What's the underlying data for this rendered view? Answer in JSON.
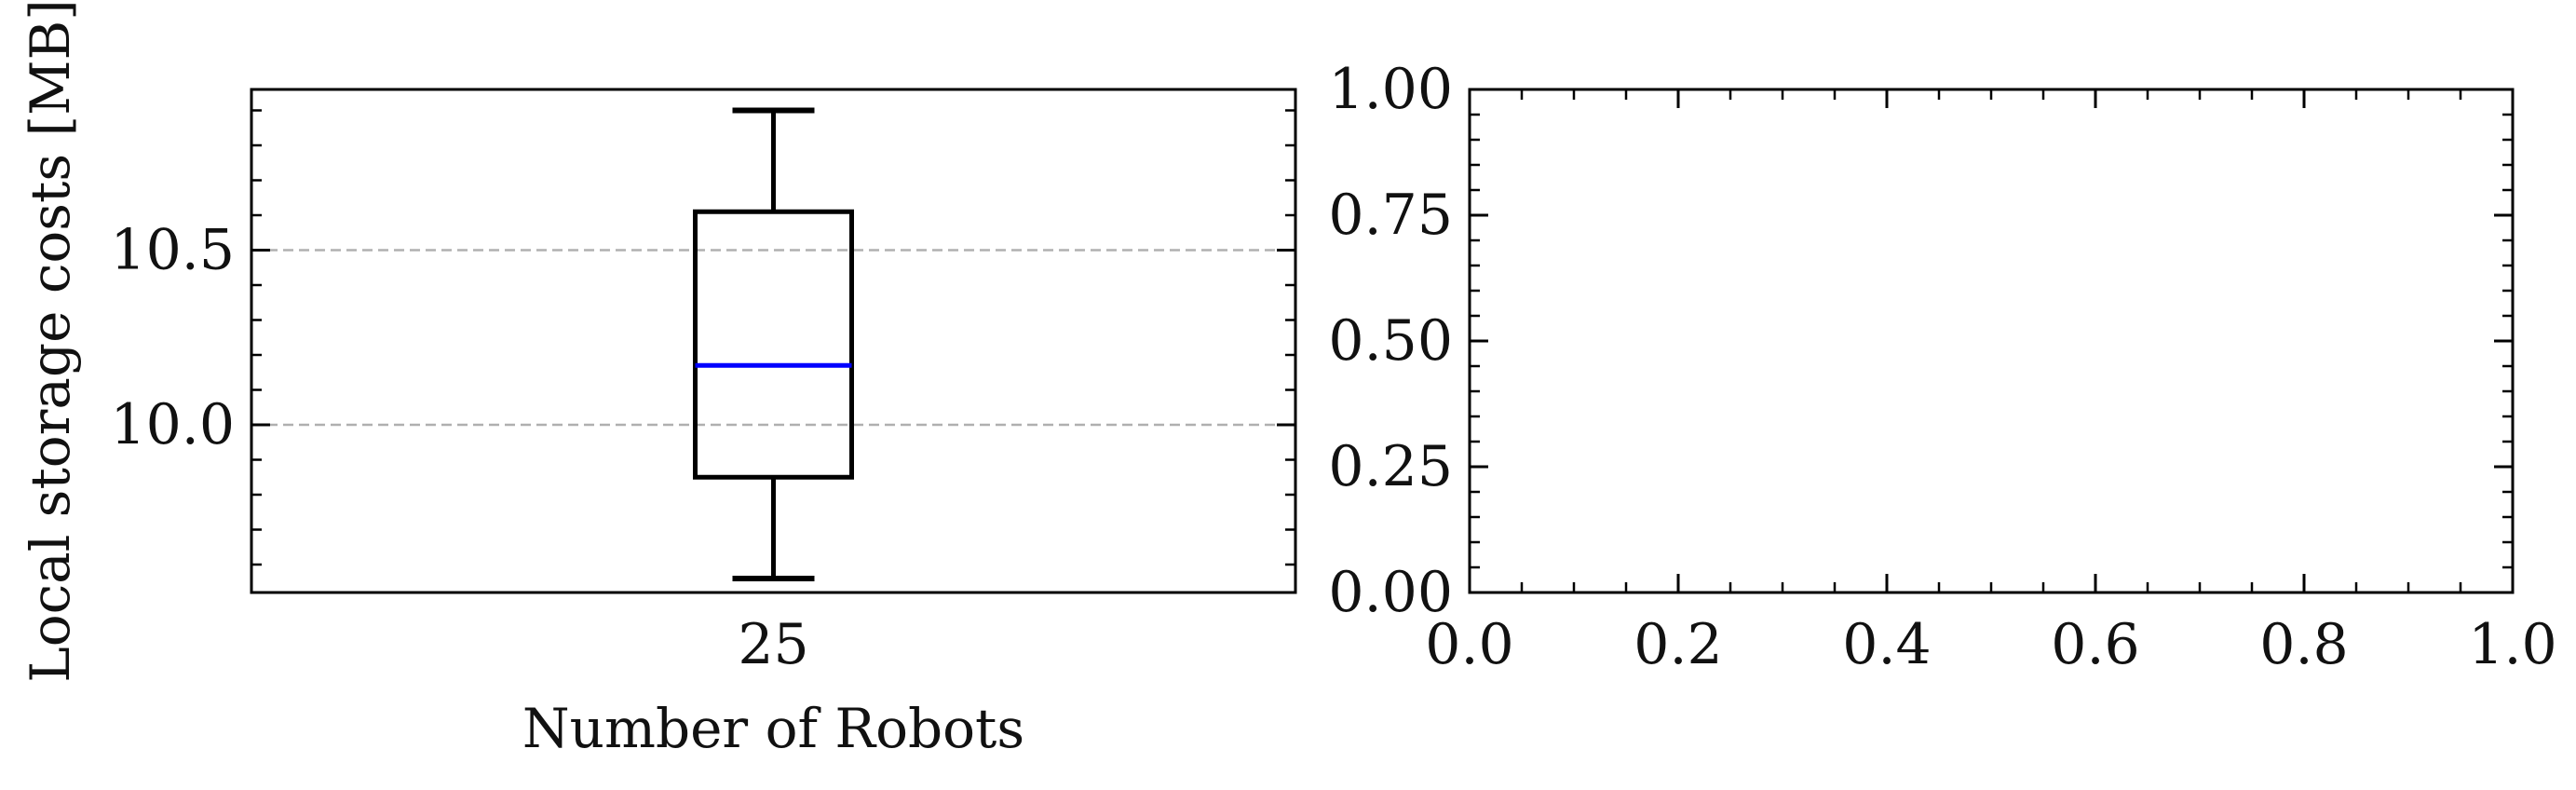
{
  "colors": {
    "box": "#000000",
    "median": "#0000ff",
    "grid": "#b0b0b0",
    "frame": "#000000"
  },
  "chart_data": [
    {
      "type": "box",
      "categories": [
        "25"
      ],
      "boxes": [
        {
          "category": "25",
          "whisker_low": 9.56,
          "q1": 9.85,
          "median": 10.17,
          "q3": 10.61,
          "whisker_high": 10.9
        }
      ],
      "xlabel": "Number of Robots",
      "ylabel": "Local storage costs [MB]",
      "ylim": [
        9.52,
        10.96
      ],
      "yticks": [
        "10.0",
        "10.5"
      ],
      "ytick_values": [
        10.0,
        10.5
      ],
      "y_minor_step": 0.1,
      "grid": "y-dashed"
    },
    {
      "type": "empty",
      "xlim": [
        0.0,
        1.0
      ],
      "ylim": [
        0.0,
        1.0
      ],
      "xticks": [
        "0.0",
        "0.2",
        "0.4",
        "0.6",
        "0.8",
        "1.0"
      ],
      "yticks": [
        "0.00",
        "0.25",
        "0.50",
        "0.75",
        "1.00"
      ],
      "x_minor_step": 0.05,
      "y_minor_step": 0.05,
      "grid": false
    }
  ]
}
